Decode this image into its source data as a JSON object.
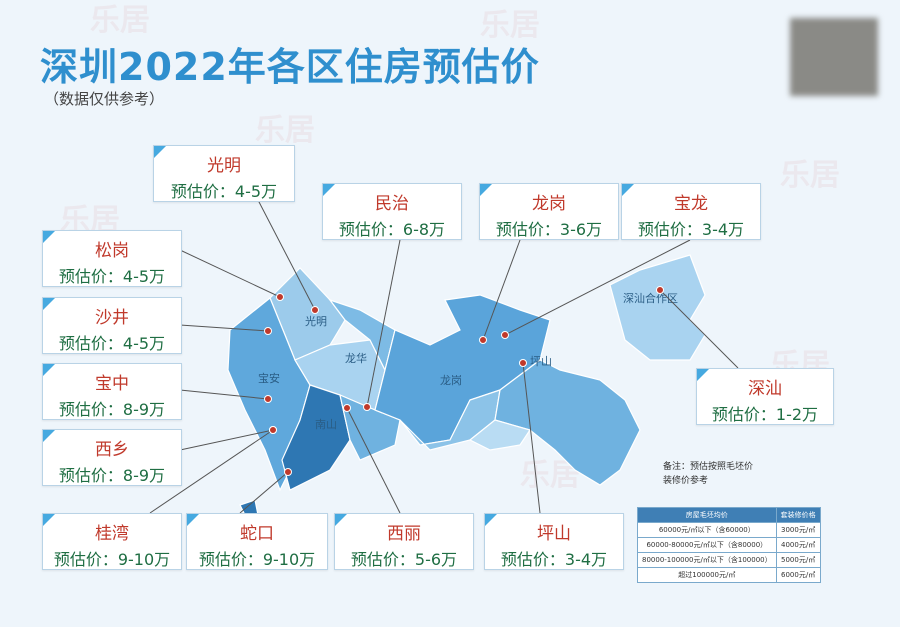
{
  "watermark": "乐居",
  "header": {
    "title": "深圳2022年各区住房预估价",
    "subtitle": "（数据仅供参考）"
  },
  "callouts": [
    {
      "name": "光明",
      "price": "预估价：4-5万"
    },
    {
      "name": "民治",
      "price": "预估价：6-8万"
    },
    {
      "name": "龙岗",
      "price": "预估价：3-6万"
    },
    {
      "name": "宝龙",
      "price": "预估价：3-4万"
    },
    {
      "name": "松岗",
      "price": "预估价：4-5万"
    },
    {
      "name": "沙井",
      "price": "预估价：4-5万"
    },
    {
      "name": "宝中",
      "price": "预估价：8-9万"
    },
    {
      "name": "西乡",
      "price": "预估价：8-9万"
    },
    {
      "name": "深汕",
      "price": "预估价：1-2万"
    },
    {
      "name": "桂湾",
      "price": "预估价：9-10万"
    },
    {
      "name": "蛇口",
      "price": "预估价：9-10万"
    },
    {
      "name": "西丽",
      "price": "预估价：5-6万"
    },
    {
      "name": "坪山",
      "price": "预估价：3-4万"
    }
  ],
  "map_labels": [
    "光明",
    "龙华",
    "宝安",
    "南山",
    "龙岗",
    "坪山",
    "深汕合作区"
  ],
  "note": [
    "备注：预估按照毛坯价",
    "装修价参考"
  ],
  "table": {
    "headers": [
      "房屋毛坯均价",
      "套装修价格"
    ],
    "rows": [
      [
        "60000元/㎡以下（含60000）",
        "3000元/㎡"
      ],
      [
        "60000-80000元/㎡以下（含80000）",
        "4000元/㎡"
      ],
      [
        "80000-100000元/㎡以下（含100000）",
        "5000元/㎡"
      ],
      [
        "超过100000元/㎡",
        "6000元/㎡"
      ]
    ]
  }
}
